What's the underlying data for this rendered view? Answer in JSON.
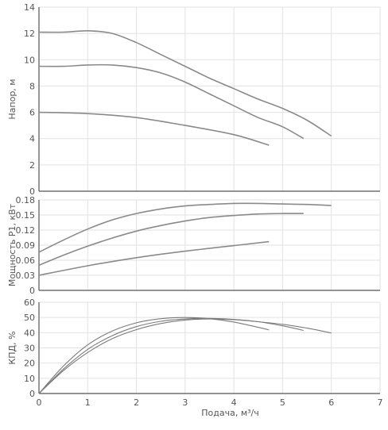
{
  "chart_data": [
    {
      "type": "line",
      "ylabel": "Напор, м",
      "xlim": [
        0,
        7
      ],
      "ylim": [
        0,
        14
      ],
      "yticks": [
        "0",
        "2",
        "4",
        "6",
        "8",
        "10",
        "12",
        "14"
      ],
      "grid": true,
      "series": [
        {
          "x": [
            0,
            0.5,
            1,
            1.5,
            2,
            2.5,
            3,
            3.5,
            4,
            4.5,
            5,
            5.5,
            6
          ],
          "values": [
            12.1,
            12.1,
            12.2,
            12.0,
            11.3,
            10.4,
            9.5,
            8.6,
            7.8,
            7.0,
            6.3,
            5.4,
            4.2
          ]
        },
        {
          "x": [
            0,
            0.5,
            1,
            1.5,
            2,
            2.5,
            3,
            3.5,
            4,
            4.5,
            5,
            5.43
          ],
          "values": [
            9.5,
            9.5,
            9.6,
            9.6,
            9.4,
            9.0,
            8.3,
            7.4,
            6.5,
            5.6,
            4.9,
            4.0
          ]
        },
        {
          "x": [
            0,
            1,
            2,
            3,
            4,
            4.72
          ],
          "values": [
            6.0,
            5.9,
            5.6,
            5.0,
            4.3,
            3.5
          ]
        }
      ]
    },
    {
      "type": "line",
      "ylabel": "Мощность P1, кВт",
      "xlim": [
        0,
        7
      ],
      "ylim": [
        0,
        0.18
      ],
      "yticks": [
        "0",
        "0.03",
        "0.06",
        "0.09",
        "0.12",
        "0.15",
        "0.18"
      ],
      "grid": true,
      "series": [
        {
          "x": [
            0,
            0.5,
            1,
            1.5,
            2,
            2.5,
            3,
            3.5,
            4,
            4.5,
            5,
            5.5,
            6
          ],
          "values": [
            0.076,
            0.1,
            0.122,
            0.14,
            0.153,
            0.162,
            0.168,
            0.171,
            0.173,
            0.173,
            0.172,
            0.171,
            0.169
          ]
        },
        {
          "x": [
            0,
            0.5,
            1,
            1.5,
            2,
            2.5,
            3,
            3.5,
            4,
            4.5,
            5,
            5.43
          ],
          "values": [
            0.05,
            0.07,
            0.088,
            0.104,
            0.118,
            0.129,
            0.138,
            0.145,
            0.149,
            0.152,
            0.153,
            0.153
          ]
        },
        {
          "x": [
            0,
            1,
            2,
            3,
            4,
            4.72
          ],
          "values": [
            0.03,
            0.049,
            0.065,
            0.078,
            0.089,
            0.097
          ]
        }
      ]
    },
    {
      "type": "line",
      "ylabel": "КПД, %",
      "xlabel": "Подача, м³/ч",
      "xlim": [
        0,
        7
      ],
      "ylim": [
        0,
        60
      ],
      "xticks": [
        "0",
        "1",
        "2",
        "3",
        "4",
        "5",
        "6",
        "7"
      ],
      "yticks": [
        "0",
        "10",
        "20",
        "30",
        "40",
        "50",
        "60"
      ],
      "grid": true,
      "series": [
        {
          "x": [
            0,
            0.5,
            1,
            1.5,
            2,
            2.5,
            3,
            3.5,
            4,
            4.5,
            4.72
          ],
          "values": [
            0,
            18,
            32,
            41,
            46.5,
            49.2,
            50,
            49.2,
            47,
            43.5,
            41.8
          ]
        },
        {
          "x": [
            0,
            0.5,
            1,
            1.5,
            2,
            2.5,
            3,
            3.5,
            4,
            4.5,
            5,
            5.43
          ],
          "values": [
            0,
            16,
            29,
            38,
            44,
            47.5,
            49,
            49.4,
            48.8,
            47.2,
            44.5,
            41.5
          ]
        },
        {
          "x": [
            0,
            0.5,
            1,
            1.5,
            2,
            2.5,
            3,
            3.5,
            4,
            4.5,
            5,
            5.5,
            6
          ],
          "values": [
            0,
            15,
            27,
            36,
            42,
            46,
            48.3,
            49,
            48.5,
            47.2,
            45.5,
            43,
            39.8
          ]
        }
      ]
    }
  ]
}
